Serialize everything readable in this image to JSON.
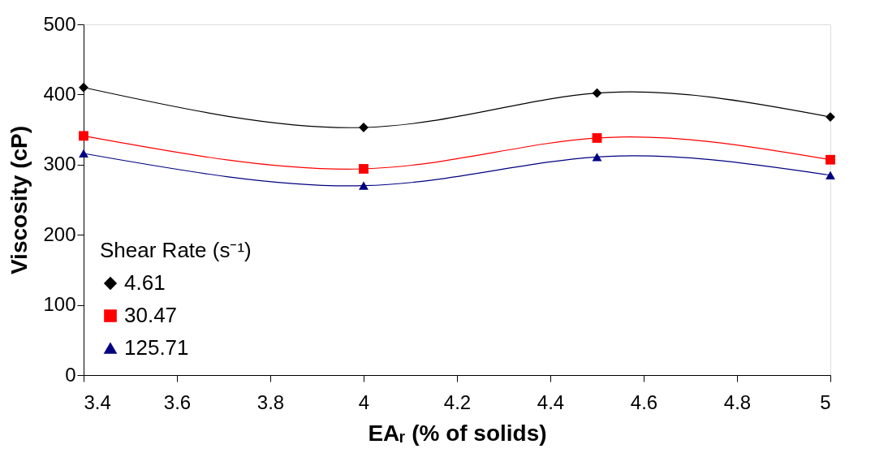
{
  "chart_data": {
    "type": "line",
    "xlabel": "EAᵣ (% of solids)",
    "ylabel": "Viscosity (cP)",
    "legend_title": "Shear Rate (s⁻¹)",
    "x": [
      3.4,
      4,
      4.5,
      5
    ],
    "series": [
      {
        "name": "4.61",
        "color": "#000000",
        "marker": "diamond",
        "values": [
          410,
          353,
          402,
          368
        ]
      },
      {
        "name": "30.47",
        "color": "#ff0000",
        "marker": "square",
        "values": [
          341,
          294,
          338,
          307
        ]
      },
      {
        "name": "125.71",
        "color": "#000080",
        "marker": "triangle",
        "values": [
          316,
          270,
          311,
          285
        ]
      }
    ],
    "xlim": [
      3.4,
      5
    ],
    "xticks": [
      3.4,
      3.6,
      3.8,
      4,
      4.2,
      4.4,
      4.6,
      4.8,
      5
    ],
    "ylim": [
      0,
      500
    ],
    "yticks": [
      0,
      100,
      200,
      300,
      400,
      500
    ],
    "grid": false,
    "legend": "bottom left",
    "line_style": "solid"
  }
}
